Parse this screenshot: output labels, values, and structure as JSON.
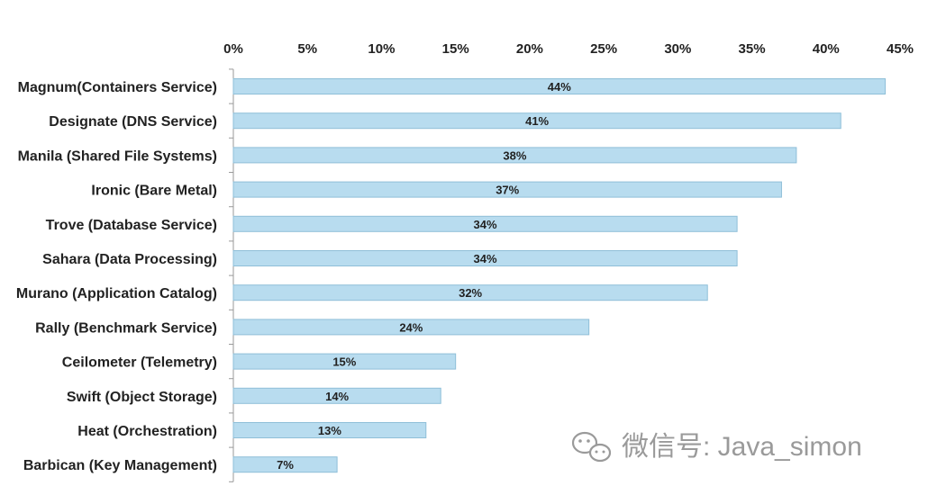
{
  "chart_data": {
    "type": "bar",
    "orientation": "horizontal",
    "categories": [
      "Magnum(Containers Service)",
      "Designate (DNS Service)",
      "Manila (Shared File Systems)",
      "Ironic (Bare Metal)",
      "Trove (Database Service)",
      "Sahara (Data Processing)",
      "Murano (Application Catalog)",
      "Rally (Benchmark Service)",
      "Ceilometer (Telemetry)",
      "Swift (Object Storage)",
      "Heat (Orchestration)",
      "Barbican (Key Management)"
    ],
    "values": [
      44,
      41,
      38,
      37,
      34,
      34,
      32,
      24,
      15,
      14,
      13,
      7
    ],
    "data_labels": [
      "44%",
      "41%",
      "38%",
      "37%",
      "34%",
      "34%",
      "32%",
      "24%",
      "15%",
      "14%",
      "13%",
      "7%"
    ],
    "title": "",
    "xlabel": "",
    "ylabel": "",
    "xlim": [
      0,
      45
    ],
    "tick_values": [
      0,
      5,
      10,
      15,
      20,
      25,
      30,
      35,
      40,
      45
    ],
    "tick_labels": [
      "0%",
      "5%",
      "10%",
      "15%",
      "20%",
      "25%",
      "30%",
      "35%",
      "40%",
      "45%"
    ],
    "axis_position": "top",
    "grid": false,
    "legend": "none",
    "colors": {
      "bar_fill": "#b8dcef",
      "bar_stroke": "#8fbfd8",
      "axis": "#9a9a9a",
      "text": "#222222"
    }
  },
  "watermark": {
    "text": "微信号: Java_simon",
    "icon": "wechat-icon"
  }
}
